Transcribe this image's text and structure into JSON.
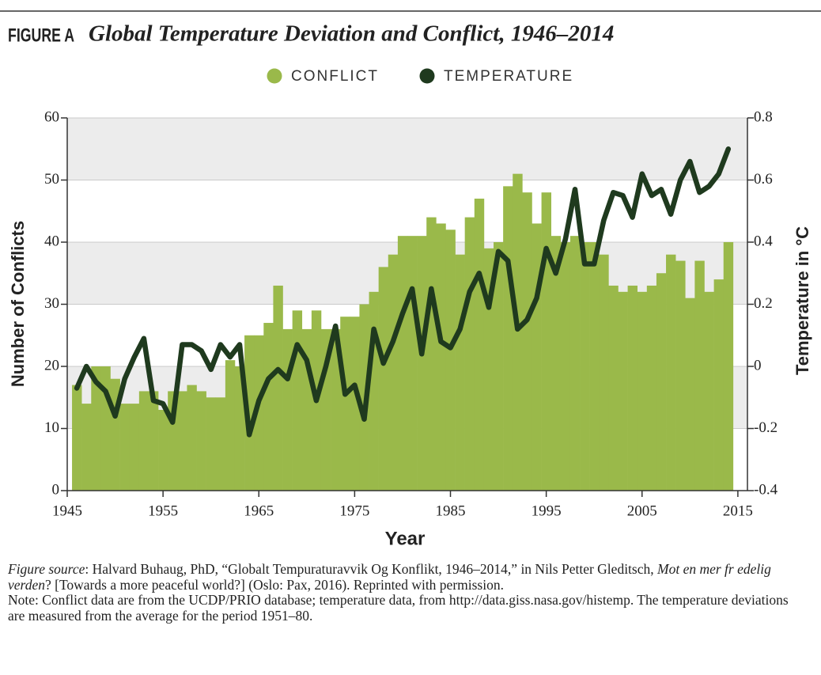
{
  "chart_data": {
    "type": "bar-line",
    "figure_label": "FIGURE A",
    "title": "Global Temperature Deviation and Conflict, 1946–2014",
    "x_label": "Year",
    "y_label": "Number of Conflicts",
    "y2_label": "Temperature in °C",
    "x": [
      1946,
      1947,
      1948,
      1949,
      1950,
      1951,
      1952,
      1953,
      1954,
      1955,
      1956,
      1957,
      1958,
      1959,
      1960,
      1961,
      1962,
      1963,
      1964,
      1965,
      1966,
      1967,
      1968,
      1969,
      1970,
      1971,
      1972,
      1973,
      1974,
      1975,
      1976,
      1977,
      1978,
      1979,
      1980,
      1981,
      1982,
      1983,
      1984,
      1985,
      1986,
      1987,
      1988,
      1989,
      1990,
      1991,
      1992,
      1993,
      1994,
      1995,
      1996,
      1997,
      1998,
      1999,
      2000,
      2001,
      2002,
      2003,
      2004,
      2005,
      2006,
      2007,
      2008,
      2009,
      2010,
      2011,
      2012,
      2013,
      2014
    ],
    "series": [
      {
        "name": "CONFLICT",
        "type": "bar",
        "color": "#9ab94a",
        "values": [
          17,
          14,
          20,
          20,
          18,
          14,
          14,
          16,
          16,
          13,
          16,
          16,
          17,
          16,
          15,
          15,
          21,
          20,
          25,
          25,
          27,
          33,
          26,
          29,
          26,
          29,
          26,
          26,
          28,
          28,
          30,
          32,
          36,
          38,
          41,
          41,
          41,
          44,
          43,
          42,
          38,
          44,
          47,
          39,
          40,
          49,
          51,
          48,
          43,
          48,
          41,
          40,
          41,
          40,
          40,
          38,
          33,
          32,
          33,
          32,
          33,
          35,
          38,
          37,
          31,
          37,
          32,
          34,
          40
        ]
      },
      {
        "name": "TEMPERATURE",
        "type": "line",
        "axis": "y2",
        "color": "#1f3a1e",
        "values": [
          -0.07,
          0.0,
          -0.05,
          -0.08,
          -0.16,
          -0.04,
          0.03,
          0.09,
          -0.11,
          -0.12,
          -0.18,
          0.07,
          0.07,
          0.05,
          -0.01,
          0.07,
          0.03,
          0.07,
          -0.22,
          -0.11,
          -0.04,
          -0.01,
          -0.04,
          0.07,
          0.02,
          -0.11,
          0.0,
          0.13,
          -0.09,
          -0.06,
          -0.17,
          0.12,
          0.01,
          0.08,
          0.17,
          0.25,
          0.04,
          0.25,
          0.08,
          0.06,
          0.12,
          0.24,
          0.3,
          0.19,
          0.37,
          0.34,
          0.12,
          0.15,
          0.22,
          0.38,
          0.3,
          0.41,
          0.57,
          0.33,
          0.33,
          0.47,
          0.56,
          0.55,
          0.48,
          0.62,
          0.55,
          0.57,
          0.49,
          0.6,
          0.66,
          0.56,
          0.58,
          0.62,
          0.7
        ]
      }
    ],
    "xlim": [
      1945,
      2016
    ],
    "xticks": [
      1945,
      1955,
      1965,
      1975,
      1985,
      1995,
      2005,
      2015
    ],
    "ylim": [
      0,
      60
    ],
    "yticks": [
      0,
      10,
      20,
      30,
      40,
      50,
      60
    ],
    "y2lim": [
      -0.4,
      0.8
    ],
    "y2ticks": [
      -0.4,
      -0.2,
      0,
      0.2,
      0.4,
      0.6,
      0.8
    ],
    "grid": "bands",
    "notes": {
      "source": [
        "Figure source",
        ": Halvard Buhaug, PhD, “Globalt Tempuraturavvik Og Konflikt, 1946–2014,” in Nils Petter Gleditsch, ",
        "Mot en mer fr edelig verden",
        "? [Towards a more peaceful world?] (Oslo: Pax, 2016). Reprinted with permission."
      ],
      "note": "Note: Conflict data are from the UCDP/PRIO database; temperature data, from http://data.giss.nasa.gov/histemp. The temperature deviations are measured from the average for the period 1951–80."
    }
  }
}
